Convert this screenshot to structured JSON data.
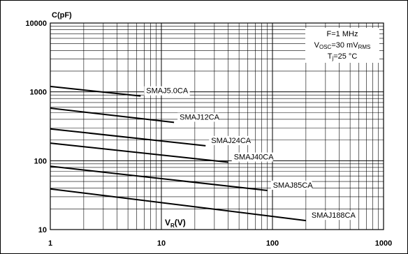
{
  "chart_data": {
    "type": "line",
    "ylabel": "C(pF)",
    "xlabel_main": "V",
    "xlabel_sub": "R",
    "xlabel_unit": "(V)",
    "xscale": "log",
    "yscale": "log",
    "xlim": [
      1,
      1000
    ],
    "ylim": [
      10,
      10000
    ],
    "grid": true,
    "x_ticks": [
      "1",
      "10",
      "100",
      "1000"
    ],
    "y_ticks": [
      "10",
      "100",
      "1000",
      "10000"
    ],
    "conditions": {
      "line1": "F=1 MHz",
      "line2_main": "V",
      "line2_sub": "OSC",
      "line2_rest": "=30 mV",
      "line2_sub2": "RMS",
      "line3_main": "T",
      "line3_sub": "j",
      "line3_rest": "=25 °C"
    },
    "series": [
      {
        "name": "SMAJ5.0CA",
        "x": [
          1,
          6.5
        ],
        "y": [
          1200,
          870
        ]
      },
      {
        "name": "SMAJ12CA",
        "x": [
          1,
          13
        ],
        "y": [
          580,
          360
        ]
      },
      {
        "name": "SMAJ24CA",
        "x": [
          1,
          25
        ],
        "y": [
          290,
          165
        ]
      },
      {
        "name": "SMAJ40CA",
        "x": [
          1,
          40
        ],
        "y": [
          180,
          95
        ]
      },
      {
        "name": "SMAJ85CA",
        "x": [
          1,
          90
        ],
        "y": [
          83,
          37
        ]
      },
      {
        "name": "SMAJ188CA",
        "x": [
          1,
          200
        ],
        "y": [
          39,
          13.5
        ]
      }
    ]
  }
}
